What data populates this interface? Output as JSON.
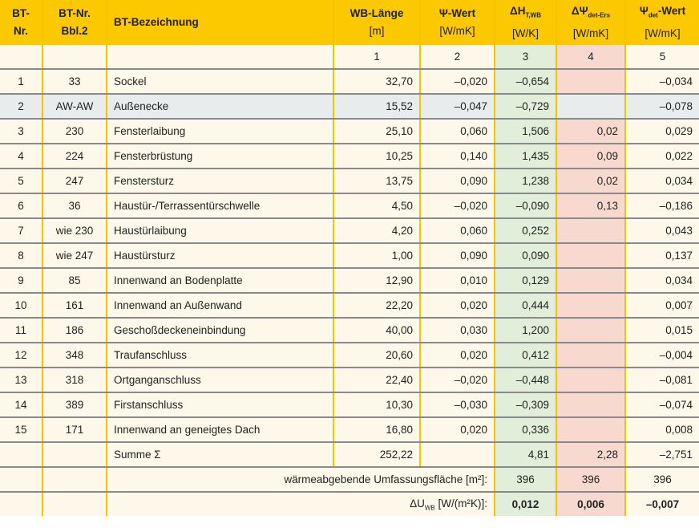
{
  "header": [
    {
      "l1": "BT-",
      "l2": "Nr."
    },
    {
      "l1": "BT-Nr.",
      "l2": "Bbl.2"
    },
    {
      "l1": "BT-Bezeichnung",
      "l2": ""
    },
    {
      "l1": "WB-Länge",
      "l2": "[m]"
    },
    {
      "l1": "Ψ-Wert",
      "l2": "[W/mK]"
    },
    {
      "l1": "ΔH",
      "sub": "T,WB",
      "l2": "[W/K]"
    },
    {
      "l1": "ΔΨ",
      "sub": "det-Ers",
      "l2": "[W/mK]"
    },
    {
      "l1": "Ψ",
      "sub": "det",
      "l1b": "-Wert",
      "l2": "[W/mK]"
    }
  ],
  "column_numbers": [
    "1",
    "2",
    "3",
    "4",
    "5"
  ],
  "rows": [
    [
      "1",
      "33",
      "Sockel",
      "32,70",
      "–0,020",
      "–0,654",
      "",
      "–0,034"
    ],
    [
      "2",
      "AW-AW",
      "Außenecke",
      "15,52",
      "–0,047",
      "–0,729",
      "",
      "–0,078"
    ],
    [
      "3",
      "230",
      "Fensterlaibung",
      "25,10",
      "0,060",
      "1,506",
      "0,02",
      "0,029"
    ],
    [
      "4",
      "224",
      "Fensterbrüstung",
      "10,25",
      "0,140",
      "1,435",
      "0,09",
      "0,022"
    ],
    [
      "5",
      "247",
      "Fenstersturz",
      "13,75",
      "0,090",
      "1,238",
      "0,02",
      "0,034"
    ],
    [
      "6",
      "36",
      "Haustür-/Terrassentürschwelle",
      "4,50",
      "–0,020",
      "–0,090",
      "0,13",
      "–0,186"
    ],
    [
      "7",
      "wie 230",
      "Haustürlaibung",
      "4,20",
      "0,060",
      "0,252",
      "",
      "0,043"
    ],
    [
      "8",
      "wie 247",
      "Haustürsturz",
      "1,00",
      "0,090",
      "0,090",
      "",
      "0,137"
    ],
    [
      "9",
      "85",
      "Innenwand an Bodenplatte",
      "12,90",
      "0,010",
      "0,129",
      "",
      "0,034"
    ],
    [
      "10",
      "161",
      "Innenwand an Außenwand",
      "22,20",
      "0,020",
      "0,444",
      "",
      "0,007"
    ],
    [
      "11",
      "186",
      "Geschoßdeckeneinbindung",
      "40,00",
      "0,030",
      "1,200",
      "",
      "0,015"
    ],
    [
      "12",
      "348",
      "Traufanschluss",
      "20,60",
      "0,020",
      "0,412",
      "",
      "–0,004"
    ],
    [
      "13",
      "318",
      "Ortganganschluss",
      "22,40",
      "–0,020",
      "–0,448",
      "",
      "–0,081"
    ],
    [
      "14",
      "389",
      "Firstanschluss",
      "10,30",
      "–0,030",
      "–0,309",
      "",
      "–0,074"
    ],
    [
      "15",
      "171",
      "Innenwand an geneigtes Dach",
      "16,80",
      "0,020",
      "0,336",
      "",
      "0,008"
    ]
  ],
  "sum": {
    "label": "Summe Σ",
    "length": "252,22",
    "dh": "4,81",
    "dpsi": "2,28",
    "psidet": "–2,751"
  },
  "area": {
    "label": "wärmeabgebende Umfassungsfläche [m²]:",
    "dh": "396",
    "dpsi": "396",
    "psidet": "396"
  },
  "du": {
    "label": "ΔU",
    "sub": "WB",
    "label2": " [W/(m²K)]:",
    "dh": "0,012",
    "dpsi": "0,006",
    "psidet": "–0,007"
  },
  "highlight_row": "2",
  "colors": {
    "header": "#fcc800",
    "body": "#fdf8e9",
    "green": "#e1eed9",
    "pink": "#f8d9cf",
    "highlight": "#e9eced"
  }
}
